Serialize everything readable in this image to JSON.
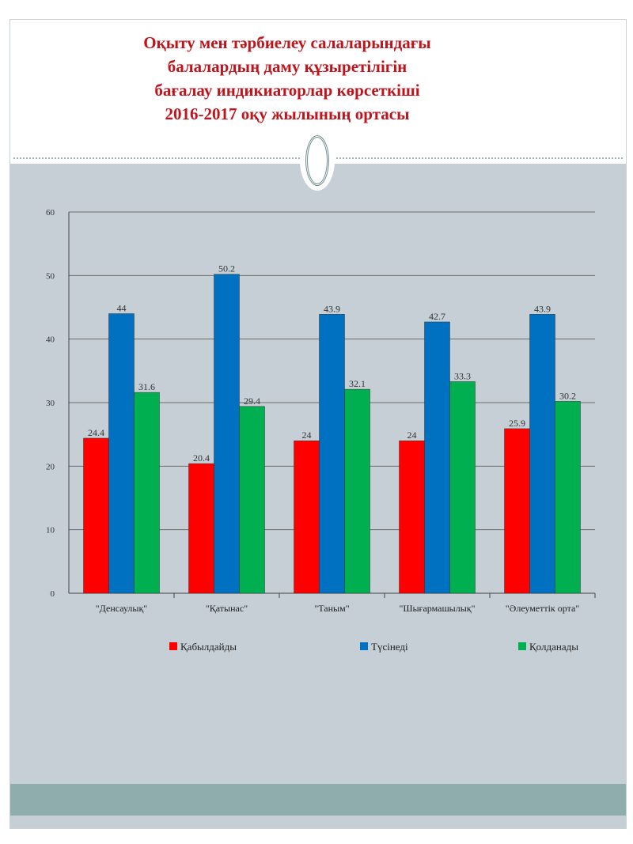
{
  "title": "Оқыту мен тәрбиелеу салаларындағы\nбалалардың даму құзыретілігін\nбағалау индикиаторлар көрсеткіші\n   2016-2017  оқу  жылының ортасы",
  "chart_data": {
    "type": "bar",
    "title": "Оқыту мен тәрбиелеу салаларындағы балалардың даму құзыретілігін бағалау индикиаторлар көрсеткіші 2016-2017 оқу жылының ортасы",
    "categories": [
      "\"Денсаулық\"",
      "\"Қатынас\"",
      "\"Таным\"",
      "\"Шығармашылық\"",
      "\"Әлеуметтік орта\""
    ],
    "series": [
      {
        "name": "Қабылдайды",
        "color": "#ff0000",
        "values": [
          24.4,
          20.4,
          24,
          24,
          25.9
        ]
      },
      {
        "name": "Түсінеді",
        "color": "#0070c0",
        "values": [
          44,
          50.2,
          43.9,
          42.7,
          43.9
        ]
      },
      {
        "name": "Қолданады",
        "color": "#00b050",
        "values": [
          31.6,
          29.4,
          32.1,
          33.3,
          30.2
        ]
      }
    ],
    "yticks": [
      0,
      10,
      20,
      30,
      40,
      50,
      60
    ],
    "ylim": [
      0,
      60
    ],
    "grid": true,
    "legend_position": "bottom",
    "xlabel": "",
    "ylabel": ""
  }
}
